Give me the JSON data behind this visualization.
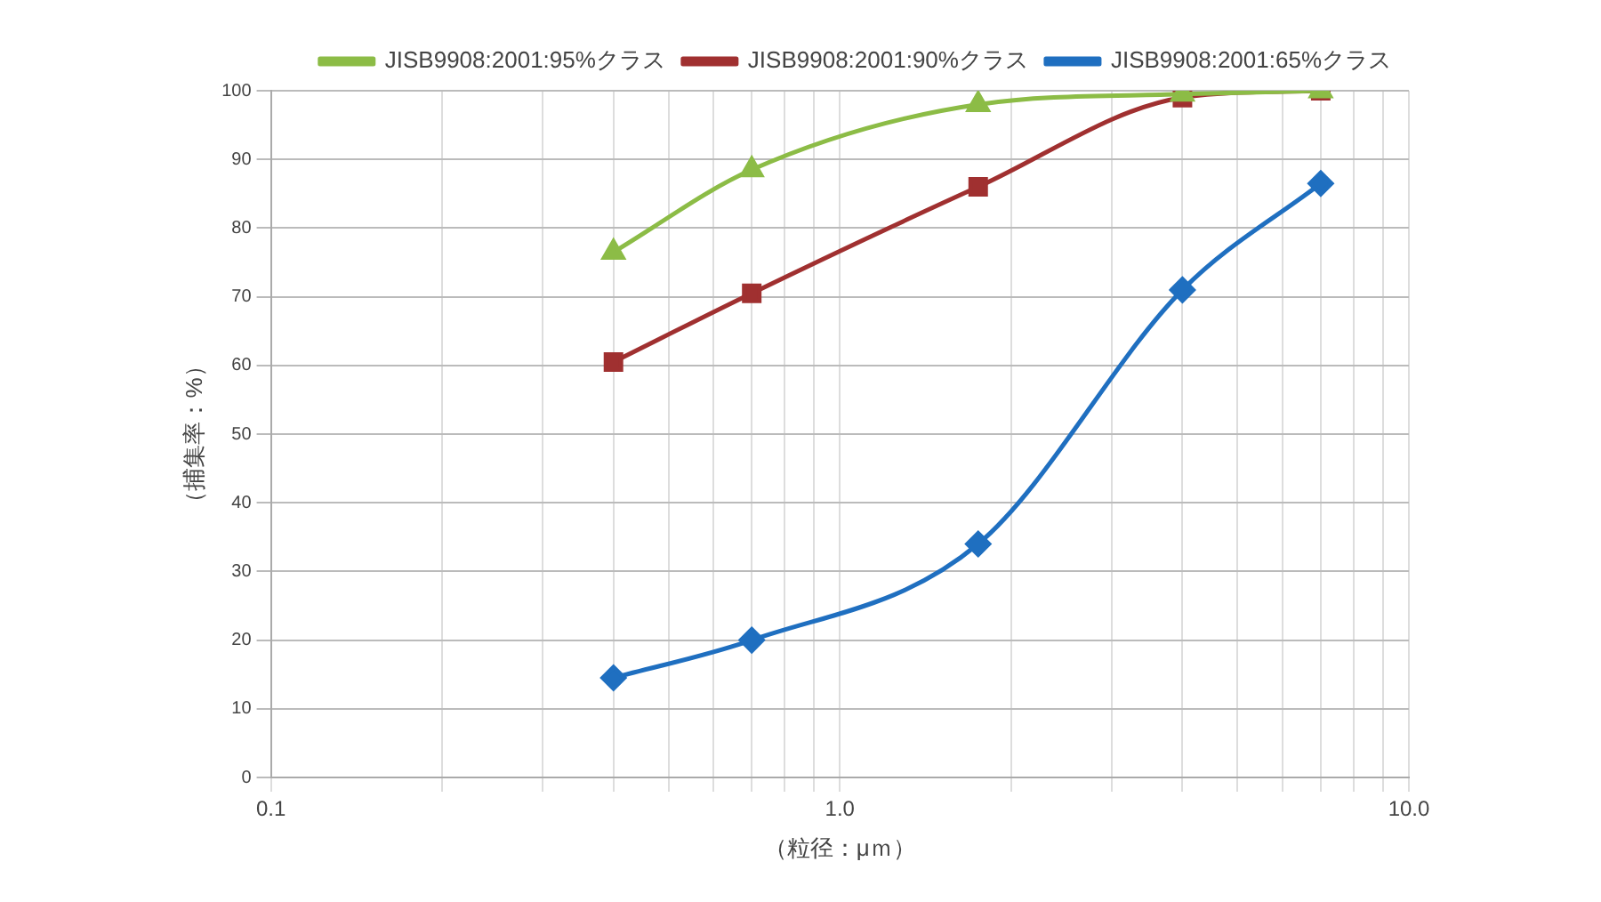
{
  "chart_data": {
    "type": "line",
    "xlabel": "（粒径：μｍ）",
    "ylabel": "（捕集率：%）",
    "x": [
      0.4,
      0.7,
      1.75,
      4.0,
      7.0
    ],
    "series": [
      {
        "name": "JISB9908:2001:65%クラス",
        "color": "#1f6fc0",
        "marker": "diamond",
        "values": [
          14.5,
          20,
          34,
          71,
          86.5
        ]
      },
      {
        "name": "JISB9908:2001:90%クラス",
        "color": "#a03030",
        "marker": "square",
        "values": [
          60.5,
          70.5,
          86,
          99,
          100
        ]
      },
      {
        "name": "JISB9908:2001:95%クラス",
        "color": "#8cbc46",
        "marker": "triangle",
        "values": [
          76.5,
          88.5,
          98,
          99.5,
          100
        ]
      }
    ],
    "log": "x",
    "xlim": [
      0.1,
      10
    ],
    "ylim": [
      0,
      100
    ],
    "xticks": [
      0.1,
      {
        "value": 0.2,
        "label": null
      },
      {
        "value": 0.3,
        "label": null
      },
      {
        "value": 0.4,
        "label": null
      },
      {
        "value": 0.5,
        "label": null
      },
      {
        "value": 0.6,
        "label": null
      },
      {
        "value": 0.7,
        "label": null
      },
      {
        "value": 0.8,
        "label": null
      },
      {
        "value": 0.9,
        "label": null
      },
      {
        "value": 1,
        "label": "1.0"
      },
      {
        "value": 2,
        "label": null
      },
      {
        "value": 3,
        "label": null
      },
      {
        "value": 4,
        "label": null
      },
      {
        "value": 5,
        "label": null
      },
      {
        "value": 6,
        "label": null
      },
      {
        "value": 7,
        "label": null
      },
      {
        "value": 8,
        "label": null
      },
      {
        "value": 9,
        "label": null
      },
      {
        "value": 10,
        "label": "10.0"
      }
    ],
    "yticks": [
      0,
      10,
      20,
      30,
      40,
      50,
      60,
      70,
      80,
      90,
      100
    ],
    "grid": true,
    "legend": "top right",
    "line_style": "solid"
  }
}
